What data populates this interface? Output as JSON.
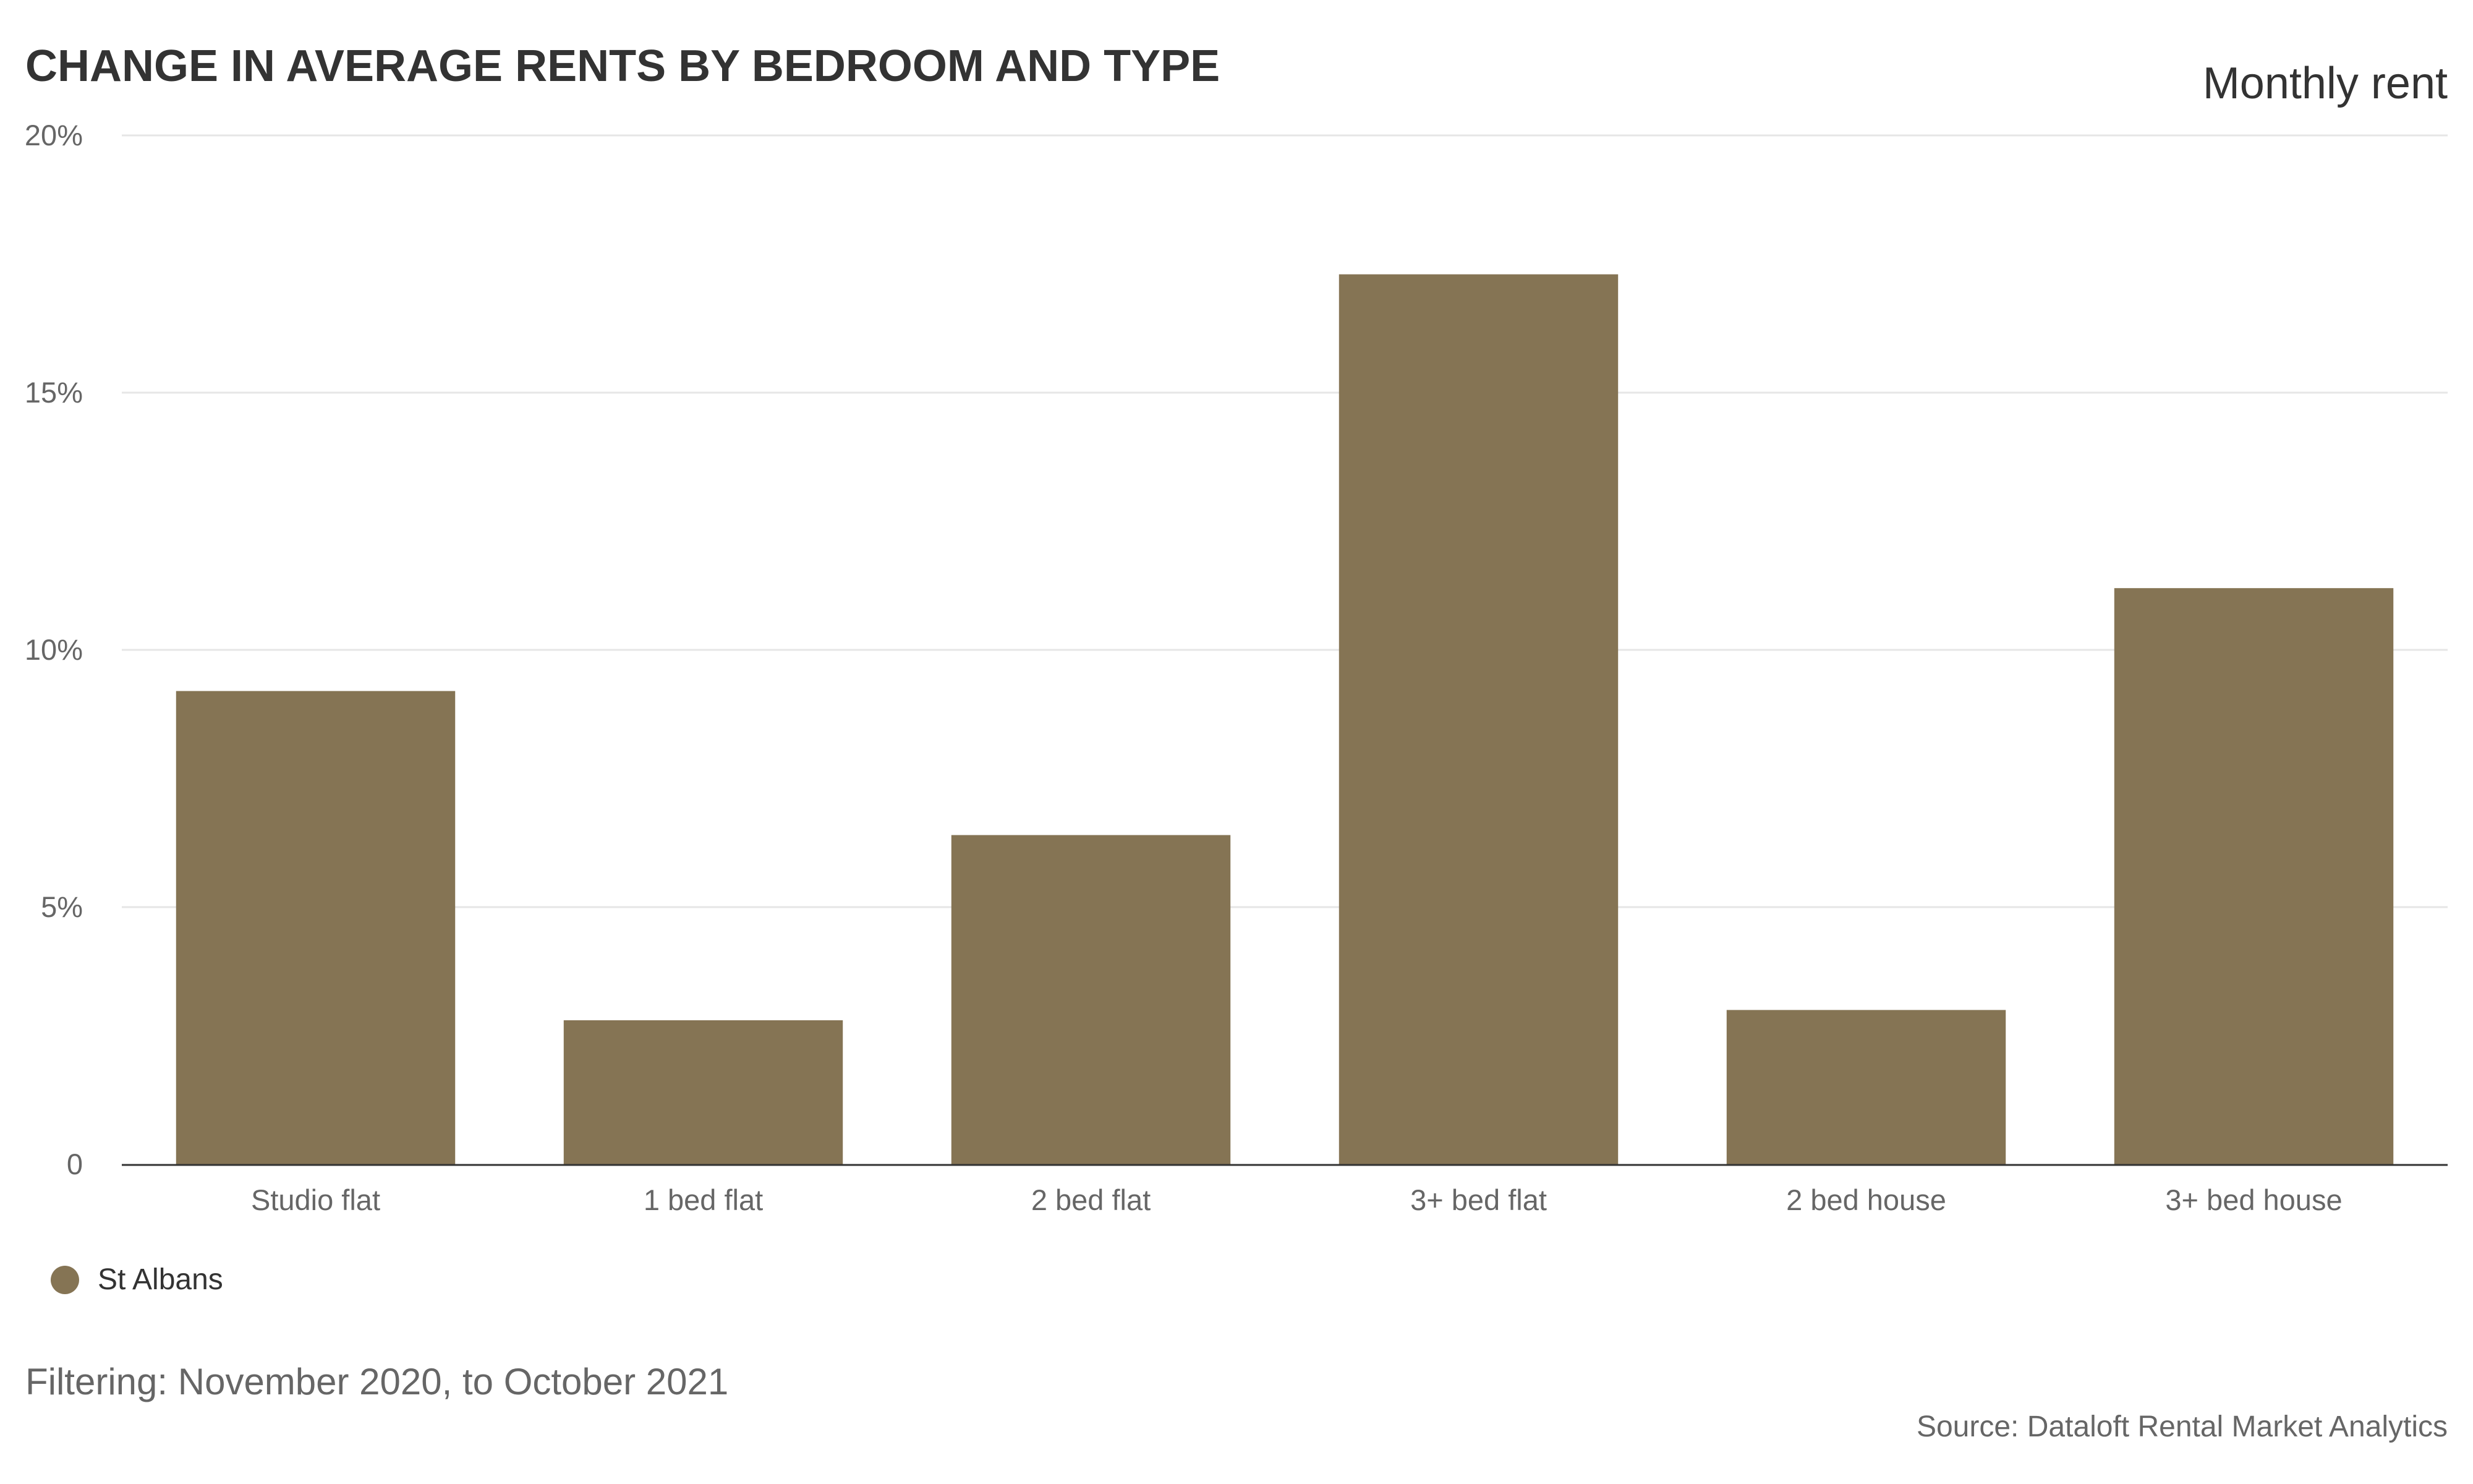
{
  "colors": {
    "bar": "#857454",
    "grid": "#e6e6e6",
    "axis": "#333333",
    "text": "#333333",
    "muted": "#666666"
  },
  "footer": {
    "filter_text": "Filtering: November 2020, to October 2021",
    "source_text": "Source: Dataloft Rental Market Analytics"
  },
  "chart_data": {
    "type": "bar",
    "title": "CHANGE IN AVERAGE RENTS BY BEDROOM AND TYPE",
    "subtitle": "Monthly rent",
    "xlabel": "",
    "ylabel": "",
    "categories": [
      "Studio flat",
      "1 bed flat",
      "2 bed flat",
      "3+ bed flat",
      "2 bed house",
      "3+ bed house"
    ],
    "series": [
      {
        "name": "St Albans",
        "values": [
          9.2,
          2.8,
          6.4,
          17.3,
          3.0,
          11.2
        ]
      }
    ],
    "ylim": [
      0,
      20
    ],
    "yticks": [
      0,
      5,
      10,
      15,
      20
    ],
    "ytick_labels": [
      "0",
      "5%",
      "10%",
      "15%",
      "20%"
    ],
    "grid": true,
    "legend_position": "bottom-left"
  }
}
